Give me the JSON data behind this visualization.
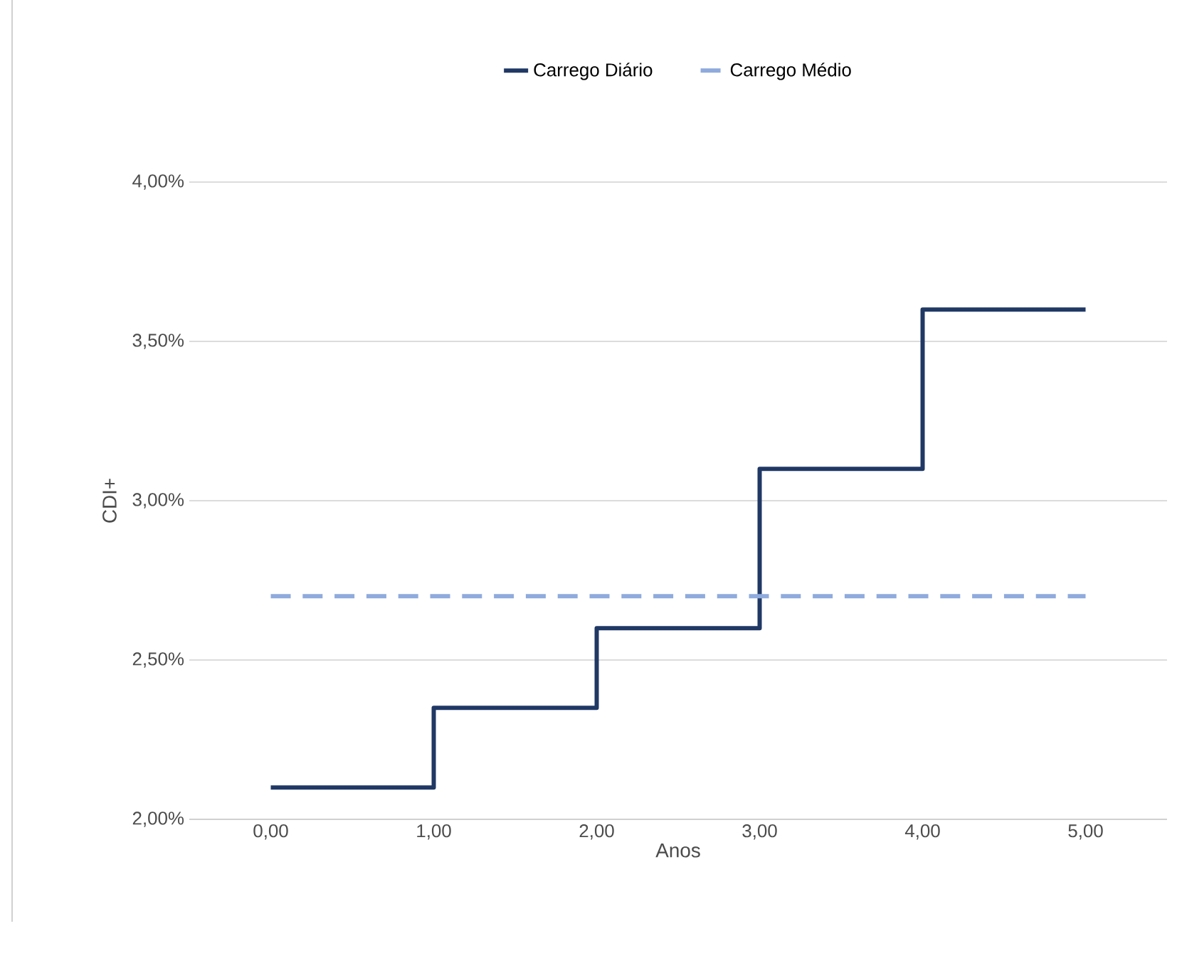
{
  "chart_data": {
    "type": "step",
    "xlabel": "Anos",
    "ylabel": "CDI+",
    "xlim": [
      -0.5,
      5.5
    ],
    "ylim": [
      2,
      4
    ],
    "xticks": [
      {
        "value": 0,
        "label": "0,00"
      },
      {
        "value": 1,
        "label": "1,00"
      },
      {
        "value": 2,
        "label": "2,00"
      },
      {
        "value": 3,
        "label": "3,00"
      },
      {
        "value": 4,
        "label": "4,00"
      },
      {
        "value": 5,
        "label": "5,00"
      }
    ],
    "yticks": [
      {
        "value": 2,
        "label": "2,00%"
      },
      {
        "value": 2.5,
        "label": "2,50%"
      },
      {
        "value": 3,
        "label": "3,00%"
      },
      {
        "value": 3.5,
        "label": "3,50%"
      },
      {
        "value": 4,
        "label": "4,00%"
      }
    ],
    "grid": "y",
    "legend": "top",
    "marker": "none",
    "series": [
      {
        "name": "Carrego Diário",
        "color": "#203864",
        "line_style": "solid",
        "x": [
          0,
          1,
          2,
          3,
          4,
          5
        ],
        "values": [
          2.1,
          2.35,
          2.6,
          3.1,
          3.6,
          3.6
        ]
      },
      {
        "name": "Carrego Médio",
        "type": "line",
        "color": "#8faadc",
        "line_style": "dashed",
        "x": [
          0,
          1,
          2,
          3,
          4,
          5
        ],
        "values": [
          2.7,
          2.7,
          2.7,
          2.7,
          2.7,
          2.7
        ]
      }
    ]
  }
}
